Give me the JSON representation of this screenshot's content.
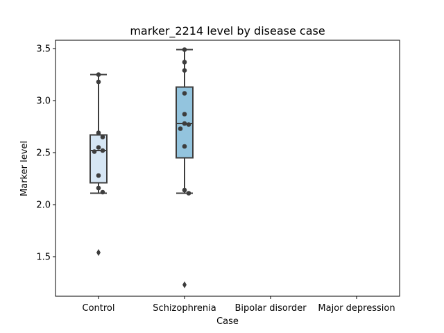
{
  "chart_data": {
    "type": "box",
    "title": "marker_2214 level by disease case",
    "xlabel": "Case",
    "ylabel": "Marker level",
    "categories": [
      "Control",
      "Schizophrenia",
      "Bipolar disorder",
      "Major depression"
    ],
    "ylim": [
      1.12,
      3.58
    ],
    "yticks": [
      1.5,
      2.0,
      2.5,
      3.0,
      3.5
    ],
    "ytick_labels": [
      "1.5",
      "2.0",
      "2.5",
      "3.0",
      "3.5"
    ],
    "grid": false,
    "colors": {
      "Control": "#d6e6f4",
      "Schizophrenia": "#93c4de",
      "edge": "#3d3d3d",
      "points": "#3d3d3d"
    },
    "boxes": [
      {
        "category": "Control",
        "whisker_low": 2.11,
        "q1": 2.21,
        "median": 2.52,
        "q3": 2.67,
        "whisker_high": 3.25,
        "outliers": [
          1.54
        ]
      },
      {
        "category": "Schizophrenia",
        "whisker_low": 2.11,
        "q1": 2.45,
        "median": 2.78,
        "q3": 3.13,
        "whisker_high": 3.49,
        "outliers": [
          1.23
        ]
      }
    ],
    "points": [
      {
        "category": "Control",
        "values": [
          3.25,
          3.18,
          2.69,
          2.65,
          2.55,
          2.52,
          2.51,
          2.28,
          2.16,
          2.12
        ]
      },
      {
        "category": "Schizophrenia",
        "values": [
          3.49,
          3.37,
          3.29,
          3.07,
          2.87,
          2.78,
          2.77,
          2.73,
          2.56,
          2.14,
          2.11
        ]
      }
    ]
  }
}
